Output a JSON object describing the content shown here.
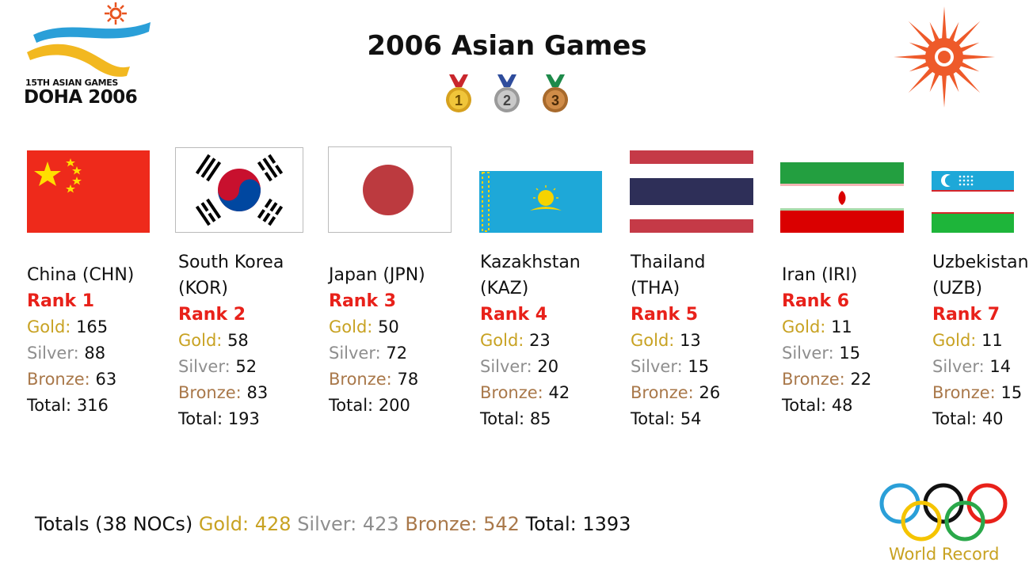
{
  "title": "2006 Asian Games",
  "logo": {
    "line1": "15TH ASIAN GAMES",
    "line2": "DOHA 2006"
  },
  "medal_numbers": [
    "1",
    "2",
    "3"
  ],
  "countries": [
    {
      "name_line1": "China (CHN)",
      "name_line2": "",
      "rank": "Rank 1",
      "gold": "165",
      "silver": "88",
      "bronze": "63",
      "total": "316"
    },
    {
      "name_line1": "South Korea",
      "name_line2": "(KOR)",
      "rank": "Rank 2",
      "gold": "58",
      "silver": "52",
      "bronze": "83",
      "total": "193"
    },
    {
      "name_line1": "Japan (JPN)",
      "name_line2": "",
      "rank": "Rank 3",
      "gold": "50",
      "silver": "72",
      "bronze": "78",
      "total": "200"
    },
    {
      "name_line1": "Kazakhstan",
      "name_line2": "(KAZ)",
      "rank": "Rank 4",
      "gold": "23",
      "silver": "20",
      "bronze": "42",
      "total": "85"
    },
    {
      "name_line1": "Thailand",
      "name_line2": "(THA)",
      "rank": "Rank 5",
      "gold": "13",
      "silver": "15",
      "bronze": "26",
      "total": "54"
    },
    {
      "name_line1": "Iran (IRI)",
      "name_line2": "",
      "rank": "Rank 6",
      "gold": "11",
      "silver": "15",
      "bronze": "22",
      "total": "48"
    },
    {
      "name_line1": "Uzbekistan",
      "name_line2": "(UZB)",
      "rank": "Rank 7",
      "gold": "11",
      "silver": "14",
      "bronze": "15",
      "total": "40"
    }
  ],
  "labels": {
    "gold": "Gold:",
    "silver": "Silver:",
    "bronze": "Bronze:",
    "total": "Total:"
  },
  "footer": {
    "prefix": "Totals (38 NOCs)",
    "gold": "Gold: 428",
    "silver": "Silver: 423",
    "bronze": "Bronze: 542",
    "total": "Total: 1393"
  },
  "watermark": "World Record",
  "colors": {
    "rank": "#e8211a",
    "gold": "#c8a222",
    "silver": "#8e8e8e",
    "bronze": "#a9784a"
  }
}
